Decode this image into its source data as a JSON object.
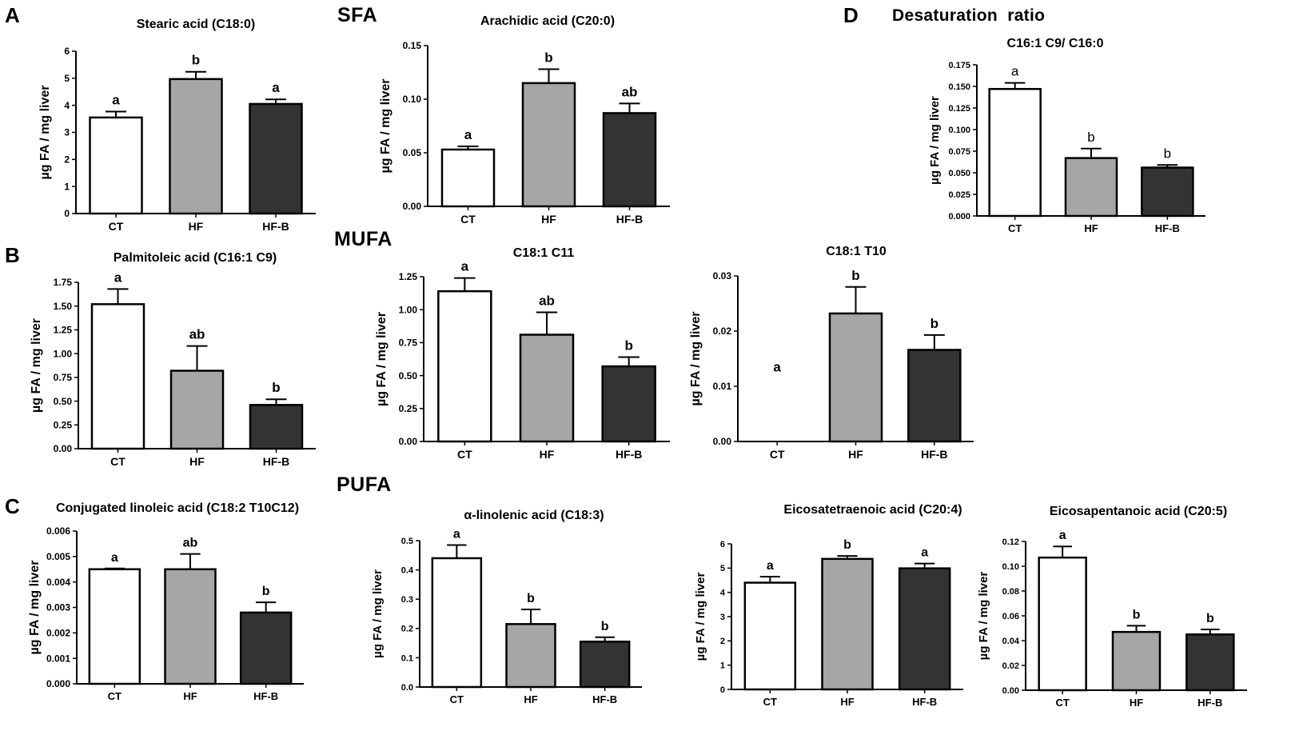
{
  "figure": {
    "panels": [
      {
        "letter": "A"
      },
      {
        "letter": "B"
      },
      {
        "letter": "C"
      },
      {
        "letter": "D"
      }
    ],
    "sections": [
      {
        "label": "SFA"
      },
      {
        "label": "MUFA"
      },
      {
        "label": "PUFA"
      },
      {
        "label": "Desaturation  ratio"
      }
    ],
    "groups": [
      "CT",
      "HF",
      "HF-B"
    ],
    "colors": {
      "CT": "#ffffff",
      "HF": "#a6a6a6",
      "HF-B": "#333333",
      "stroke": "#000000"
    }
  },
  "chart_data": [
    {
      "id": "stearic",
      "type": "bar",
      "title": "Stearic acid (C18:0)",
      "ylabel": "µg FA / mg liver",
      "categories": [
        "CT",
        "HF",
        "HF-B"
      ],
      "values": [
        3.55,
        4.97,
        4.05
      ],
      "errors": [
        0.22,
        0.27,
        0.17
      ],
      "letters": [
        "a",
        "b",
        "a"
      ],
      "ylim": [
        0,
        6
      ],
      "ticks": [
        "0",
        "1",
        "2",
        "3",
        "4",
        "5",
        "6"
      ]
    },
    {
      "id": "arachidic",
      "type": "bar",
      "title": "Arachidic acid (C20:0)",
      "ylabel": "µg FA / mg liver",
      "categories": [
        "CT",
        "HF",
        "HF-B"
      ],
      "values": [
        0.053,
        0.115,
        0.087
      ],
      "errors": [
        0.003,
        0.013,
        0.009
      ],
      "letters": [
        "a",
        "b",
        "ab"
      ],
      "ylim": [
        0,
        0.15
      ],
      "ticks": [
        "0.00",
        "0.05",
        "0.10",
        "0.15"
      ]
    },
    {
      "id": "desat",
      "type": "bar",
      "title": "C16:1 C9/ C16:0",
      "ylabel": "µg FA / mg liver",
      "categories": [
        "CT",
        "HF",
        "HF-B"
      ],
      "values": [
        0.147,
        0.067,
        0.056
      ],
      "errors": [
        0.007,
        0.011,
        0.003
      ],
      "letters": [
        "a",
        "b",
        "b"
      ],
      "ylim": [
        0,
        0.175
      ],
      "ticks": [
        "0.000",
        "0.025",
        "0.050",
        "0.075",
        "0.100",
        "0.125",
        "0.150",
        "0.175"
      ]
    },
    {
      "id": "palmitoleic",
      "type": "bar",
      "title": "Palmitoleic acid (C16:1 C9)",
      "ylabel": "µg FA / mg liver",
      "categories": [
        "CT",
        "HF",
        "HF-B"
      ],
      "values": [
        1.52,
        0.82,
        0.46
      ],
      "errors": [
        0.16,
        0.26,
        0.06
      ],
      "letters": [
        "a",
        "ab",
        "b"
      ],
      "ylim": [
        0,
        1.75
      ],
      "ticks": [
        "0.00",
        "0.25",
        "0.50",
        "0.75",
        "1.00",
        "1.25",
        "1.50",
        "1.75"
      ]
    },
    {
      "id": "c181c11",
      "type": "bar",
      "title": "C18:1 C11",
      "ylabel": "µg FA / mg liver",
      "categories": [
        "CT",
        "HF",
        "HF-B"
      ],
      "values": [
        1.14,
        0.81,
        0.57
      ],
      "errors": [
        0.1,
        0.17,
        0.07
      ],
      "letters": [
        "a",
        "ab",
        "b"
      ],
      "ylim": [
        0,
        1.25
      ],
      "ticks": [
        "0.00",
        "0.25",
        "0.50",
        "0.75",
        "1.00",
        "1.25"
      ]
    },
    {
      "id": "c181t10",
      "type": "bar",
      "title": "C18:1 T10",
      "ylabel": "µg FA / mg liver",
      "categories": [
        "CT",
        "HF",
        "HF-B"
      ],
      "values": [
        0,
        0.0232,
        0.0166
      ],
      "errors": [
        0,
        0.0048,
        0.0027
      ],
      "letters": [
        "a",
        "b",
        "b"
      ],
      "ylim": [
        0,
        0.03
      ],
      "ticks": [
        "0.00",
        "0.01",
        "0.02",
        "0.03"
      ]
    },
    {
      "id": "cla",
      "type": "bar",
      "title": "Conjugated linoleic acid (C18:2 T10C12)",
      "ylabel": "µg FA / mg liver",
      "categories": [
        "CT",
        "HF",
        "HF-B"
      ],
      "values": [
        0.0045,
        0.0045,
        0.0028
      ],
      "errors": [
        3e-05,
        0.0006,
        0.0004
      ],
      "letters": [
        "a",
        "ab",
        "b"
      ],
      "ylim": [
        0,
        0.006
      ],
      "ticks": [
        "0.000",
        "0.001",
        "0.002",
        "0.003",
        "0.004",
        "0.005",
        "0.006"
      ]
    },
    {
      "id": "ala",
      "type": "bar",
      "title": "α-linolenic acid (C18:3)",
      "ylabel": "µg FA / mg liver",
      "categories": [
        "CT",
        "HF",
        "HF-B"
      ],
      "values": [
        0.44,
        0.215,
        0.155
      ],
      "errors": [
        0.045,
        0.05,
        0.015
      ],
      "letters": [
        "a",
        "b",
        "b"
      ],
      "ylim": [
        0,
        0.5
      ],
      "ticks": [
        "0.0",
        "0.1",
        "0.2",
        "0.3",
        "0.4",
        "0.5"
      ]
    },
    {
      "id": "ara",
      "type": "bar",
      "title": "Eicosatetraenoic acid (C20:4)",
      "ylabel": "µg FA / mg liver",
      "categories": [
        "CT",
        "HF",
        "HF-B"
      ],
      "values": [
        4.4,
        5.38,
        4.99
      ],
      "errors": [
        0.25,
        0.12,
        0.2
      ],
      "letters": [
        "a",
        "b",
        "a"
      ],
      "ylim": [
        0,
        6
      ],
      "ticks": [
        "0",
        "1",
        "2",
        "3",
        "4",
        "5",
        "6"
      ]
    },
    {
      "id": "epa",
      "type": "bar",
      "title": "Eicosapentanoic acid (C20:5)",
      "ylabel": "µg FA / mg liver",
      "categories": [
        "CT",
        "HF",
        "HF-B"
      ],
      "values": [
        0.107,
        0.047,
        0.045
      ],
      "errors": [
        0.009,
        0.005,
        0.004
      ],
      "letters": [
        "a",
        "b",
        "b"
      ],
      "ylim": [
        0,
        0.12
      ],
      "ticks": [
        "0.00",
        "0.02",
        "0.04",
        "0.06",
        "0.08",
        "0.10",
        "0.12"
      ]
    }
  ]
}
